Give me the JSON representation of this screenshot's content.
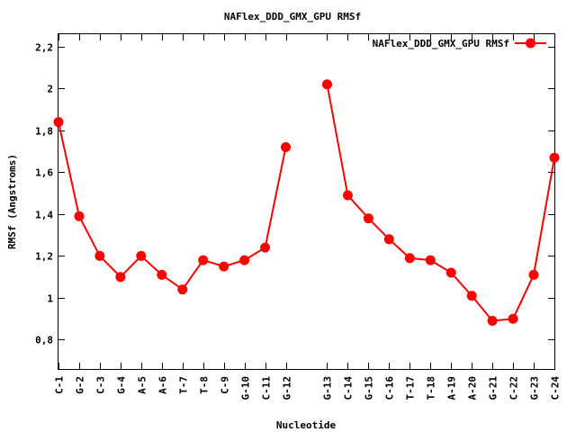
{
  "chart_data": {
    "type": "line",
    "title": "NAFlex_DDD_GMX_GPU RMSf",
    "xlabel": "Nucleotide",
    "ylabel": "RMSf (Angstroms)",
    "ylim": [
      0.66,
      2.26
    ],
    "yticks": [
      "0,8",
      "1",
      "1,2",
      "1,4",
      "1,6",
      "1,8",
      "2",
      "2,2"
    ],
    "ytick_values": [
      0.8,
      1.0,
      1.2,
      1.4,
      1.6,
      1.8,
      2.0,
      2.2
    ],
    "grid": false,
    "legend_position": "top-right",
    "color": "#ff0000",
    "categories": [
      "C-1",
      "G-2",
      "C-3",
      "G-4",
      "A-5",
      "A-6",
      "T-7",
      "T-8",
      "C-9",
      "G-10",
      "C-11",
      "G-12",
      "G-13",
      "C-14",
      "G-15",
      "C-16",
      "T-17",
      "T-18",
      "A-19",
      "A-20",
      "G-21",
      "C-22",
      "G-23",
      "C-24"
    ],
    "x_positions": [
      1,
      2,
      3,
      4,
      5,
      6,
      7,
      8,
      9,
      10,
      11,
      12,
      14,
      15,
      16,
      17,
      18,
      19,
      20,
      21,
      22,
      23,
      24,
      25
    ],
    "xlim": [
      1,
      25
    ],
    "series": [
      {
        "name": "NAFlex_DDD_GMX_GPU RMSf",
        "segments": [
          [
            1.84,
            1.39,
            1.2,
            1.1,
            1.2,
            1.11,
            1.04,
            1.18,
            1.15,
            1.18,
            1.24,
            1.72
          ],
          [
            2.02,
            1.49,
            1.38,
            1.28,
            1.19,
            1.18,
            1.12,
            1.01,
            0.89,
            0.9,
            1.11,
            1.67
          ]
        ]
      }
    ]
  }
}
